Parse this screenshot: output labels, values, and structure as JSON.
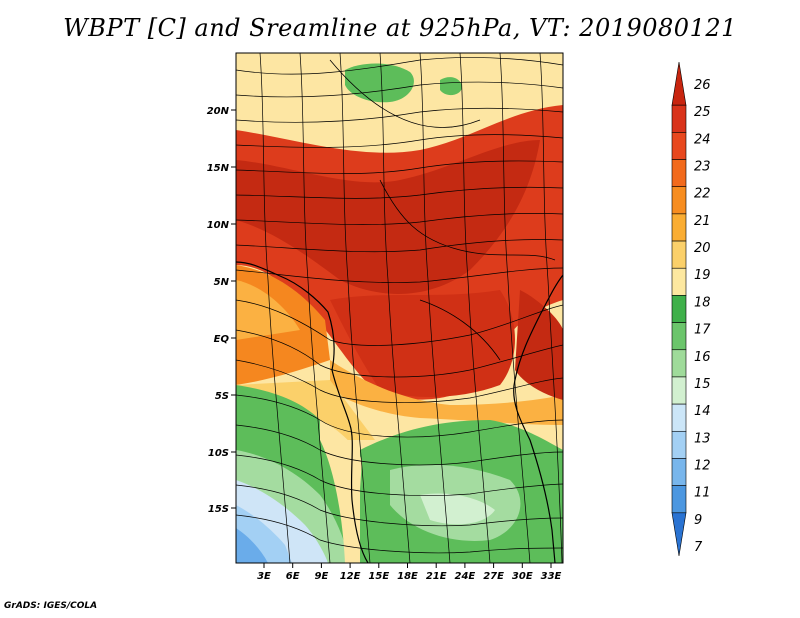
{
  "title": "WBPT [C] and Sreamline at 925hPa, VT: 2019080121",
  "credit": "GrADS: IGES/COLA",
  "lat_labels": [
    "20N",
    "15N",
    "10N",
    "5N",
    "EQ",
    "5S",
    "10S",
    "15S"
  ],
  "lon_labels": [
    "3E",
    "6E",
    "9E",
    "12E",
    "15E",
    "18E",
    "21E",
    "24E",
    "27E",
    "30E",
    "33E"
  ],
  "colorbar": {
    "levels": [
      "26",
      "25",
      "24",
      "23",
      "22",
      "21",
      "20",
      "19",
      "18",
      "17",
      "16",
      "15",
      "14",
      "13",
      "12",
      "11",
      "9",
      "7"
    ],
    "colors": [
      "#c8250f",
      "#d9331a",
      "#e8481e",
      "#f26a1c",
      "#f78d20",
      "#faad33",
      "#fbd06a",
      "#fde8a0",
      "#3fb04a",
      "#6bc56b",
      "#9fdb9a",
      "#d2f0d0",
      "#cce6f8",
      "#a3d0f4",
      "#78b6ec",
      "#4c97e0",
      "#2a73d2"
    ]
  },
  "palette": {
    "dark_red": "#c42a12",
    "red": "#dd3c1c",
    "orange": "#f5871f",
    "light_orange": "#fbb142",
    "yellow": "#fde6a3",
    "green": "#5dbd5a",
    "light_green": "#a4dca0",
    "pale_blue": "#cfe5f7",
    "blue": "#6aacea"
  }
}
